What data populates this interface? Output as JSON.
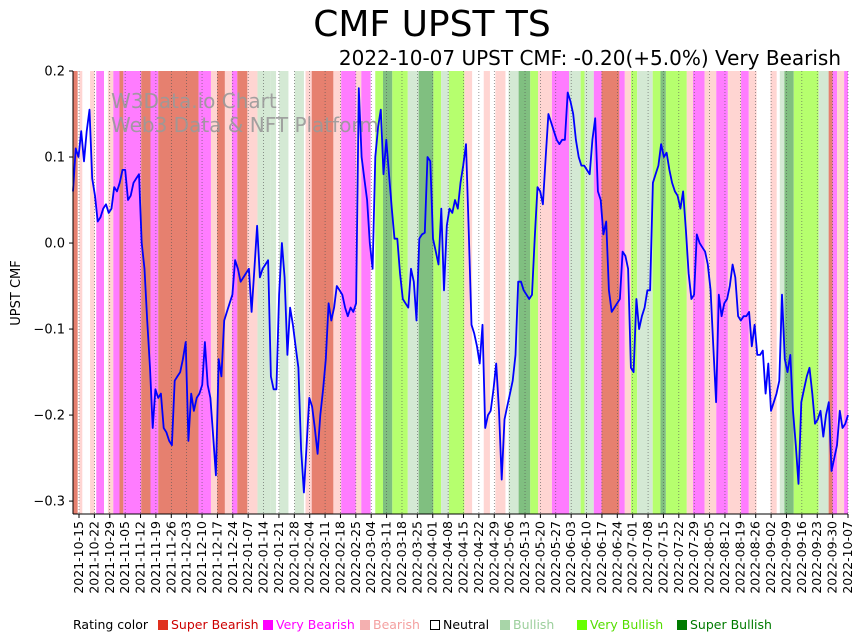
{
  "chart_data": {
    "type": "line",
    "title": "CMF UPST TS",
    "subtitle": "2022-10-07 UPST CMF: -0.20(+5.0%) Very Bearish",
    "ylabel": "UPST CMF",
    "xlabel": "",
    "ylim": [
      -0.315,
      0.2
    ],
    "yticks": [
      0.2,
      0.1,
      0.0,
      -0.1,
      -0.2,
      -0.3
    ],
    "ytick_labels": [
      "0.2",
      "0.1",
      "0.0",
      "−0.1",
      "−0.2",
      "−0.3"
    ],
    "x_start": "2021-10-15",
    "x_end": "2022-10-07",
    "xtick_labels": [
      "2021-10-15",
      "2021-10-22",
      "2021-10-29",
      "2021-11-05",
      "2021-11-12",
      "2021-11-19",
      "2021-11-26",
      "2021-12-03",
      "2021-12-10",
      "2021-12-17",
      "2021-12-24",
      "2022-01-07",
      "2022-01-14",
      "2022-01-21",
      "2022-01-28",
      "2022-02-04",
      "2022-02-11",
      "2022-02-18",
      "2022-02-25",
      "2022-03-04",
      "2022-03-11",
      "2022-03-18",
      "2022-03-25",
      "2022-04-01",
      "2022-04-08",
      "2022-04-15",
      "2022-04-22",
      "2022-04-29",
      "2022-05-06",
      "2022-05-13",
      "2022-05-20",
      "2022-05-27",
      "2022-06-03",
      "2022-06-10",
      "2022-06-17",
      "2022-06-24",
      "2022-07-01",
      "2022-07-08",
      "2022-07-15",
      "2022-07-22",
      "2022-07-29",
      "2022-08-05",
      "2022-08-12",
      "2022-08-19",
      "2022-08-26",
      "2022-09-02",
      "2022-09-09",
      "2022-09-16",
      "2022-09-23",
      "2022-09-30",
      "2022-10-07"
    ],
    "watermark": [
      "W3Data.io Chart",
      "Web3 Data & NFT Platform"
    ],
    "series": [
      {
        "name": "UPST CMF",
        "color": "#0000ff",
        "values": [
          0.06,
          0.11,
          0.1,
          0.13,
          0.095,
          0.13,
          0.155,
          0.075,
          0.055,
          0.025,
          0.03,
          0.04,
          0.045,
          0.035,
          0.04,
          0.065,
          0.06,
          0.07,
          0.085,
          0.085,
          0.05,
          0.055,
          0.07,
          0.075,
          0.08,
          0.0,
          -0.03,
          -0.09,
          -0.145,
          -0.215,
          -0.17,
          -0.18,
          -0.175,
          -0.215,
          -0.22,
          -0.23,
          -0.235,
          -0.16,
          -0.155,
          -0.15,
          -0.135,
          -0.115,
          -0.23,
          -0.175,
          -0.195,
          -0.18,
          -0.175,
          -0.165,
          -0.115,
          -0.165,
          -0.18,
          -0.225,
          -0.27,
          -0.135,
          -0.155,
          -0.09,
          -0.08,
          -0.07,
          -0.06,
          -0.02,
          -0.03,
          -0.045,
          -0.04,
          -0.035,
          -0.03,
          -0.08,
          -0.03,
          0.02,
          -0.04,
          -0.03,
          -0.025,
          -0.02,
          -0.155,
          -0.17,
          -0.17,
          -0.06,
          0.0,
          -0.04,
          -0.13,
          -0.075,
          -0.095,
          -0.12,
          -0.145,
          -0.24,
          -0.29,
          -0.235,
          -0.18,
          -0.19,
          -0.215,
          -0.245,
          -0.2,
          -0.17,
          -0.135,
          -0.07,
          -0.09,
          -0.075,
          -0.05,
          -0.055,
          -0.06,
          -0.075,
          -0.085,
          -0.075,
          -0.08,
          -0.07,
          0.18,
          0.1,
          0.075,
          0.05,
          0.0,
          -0.03,
          0.1,
          0.135,
          0.155,
          0.08,
          0.12,
          0.08,
          0.04,
          0.005,
          0.005,
          -0.035,
          -0.065,
          -0.07,
          -0.075,
          -0.03,
          -0.045,
          -0.09,
          0.005,
          0.01,
          0.012,
          0.1,
          0.095,
          0.005,
          -0.01,
          -0.025,
          0.04,
          -0.055,
          0.02,
          0.04,
          0.035,
          0.05,
          0.04,
          0.07,
          0.09,
          0.115,
          0.015,
          -0.095,
          -0.105,
          -0.12,
          -0.14,
          -0.095,
          -0.215,
          -0.2,
          -0.195,
          -0.17,
          -0.14,
          -0.195,
          -0.275,
          -0.205,
          -0.19,
          -0.175,
          -0.16,
          -0.13,
          -0.045,
          -0.045,
          -0.055,
          -0.06,
          -0.065,
          -0.06,
          0.005,
          0.065,
          0.06,
          0.045,
          0.1,
          0.15,
          0.14,
          0.13,
          0.12,
          0.115,
          0.12,
          0.12,
          0.175,
          0.165,
          0.15,
          0.12,
          0.1,
          0.09,
          0.09,
          0.085,
          0.08,
          0.12,
          0.145,
          0.06,
          0.05,
          0.01,
          0.025,
          -0.055,
          -0.08,
          -0.075,
          -0.07,
          -0.065,
          -0.01,
          -0.015,
          -0.03,
          -0.145,
          -0.15,
          -0.065,
          -0.1,
          -0.085,
          -0.075,
          -0.055,
          -0.055,
          0.07,
          0.08,
          0.09,
          0.115,
          0.1,
          0.105,
          0.085,
          0.07,
          0.06,
          0.055,
          0.04,
          0.06,
          0.015,
          -0.035,
          -0.065,
          -0.06,
          0.01,
          0.0,
          -0.005,
          -0.01,
          -0.025,
          -0.055,
          -0.12,
          -0.185,
          -0.06,
          -0.085,
          -0.07,
          -0.065,
          -0.05,
          -0.025,
          -0.04,
          -0.085,
          -0.09,
          -0.085,
          -0.085,
          -0.08,
          -0.12,
          -0.095,
          -0.13,
          -0.13,
          -0.125,
          -0.175,
          -0.14,
          -0.195,
          -0.185,
          -0.175,
          -0.16,
          -0.06,
          -0.135,
          -0.15,
          -0.13,
          -0.195,
          -0.235,
          -0.28,
          -0.185,
          -0.17,
          -0.155,
          -0.145,
          -0.175,
          -0.21,
          -0.205,
          -0.195,
          -0.225,
          -0.2,
          -0.185,
          -0.265,
          -0.25,
          -0.235,
          -0.195,
          -0.215,
          -0.21,
          -0.2
        ]
      }
    ],
    "rating_bands": [
      {
        "s": 0.0,
        "e": 0.006,
        "r": "Super Bearish"
      },
      {
        "s": 0.008,
        "e": 0.012,
        "r": "Bearish"
      },
      {
        "s": 0.022,
        "e": 0.028,
        "r": "Bearish"
      },
      {
        "s": 0.03,
        "e": 0.04,
        "r": "Very Bearish"
      },
      {
        "s": 0.045,
        "e": 0.052,
        "r": "Bearish"
      },
      {
        "s": 0.052,
        "e": 0.06,
        "r": "Very Bearish"
      },
      {
        "s": 0.06,
        "e": 0.065,
        "r": "Super Bearish"
      },
      {
        "s": 0.065,
        "e": 0.088,
        "r": "Very Bearish"
      },
      {
        "s": 0.088,
        "e": 0.1,
        "r": "Super Bearish"
      },
      {
        "s": 0.1,
        "e": 0.11,
        "r": "Very Bearish"
      },
      {
        "s": 0.11,
        "e": 0.162,
        "r": "Super Bearish"
      },
      {
        "s": 0.162,
        "e": 0.178,
        "r": "Very Bearish"
      },
      {
        "s": 0.178,
        "e": 0.186,
        "r": "Bearish"
      },
      {
        "s": 0.186,
        "e": 0.196,
        "r": "Super Bearish"
      },
      {
        "s": 0.196,
        "e": 0.205,
        "r": "Bearish"
      },
      {
        "s": 0.205,
        "e": 0.212,
        "r": "Very Bearish"
      },
      {
        "s": 0.212,
        "e": 0.225,
        "r": "Super Bearish"
      },
      {
        "s": 0.225,
        "e": 0.238,
        "r": "Bearish"
      },
      {
        "s": 0.238,
        "e": 0.255,
        "r": "Bullish"
      },
      {
        "s": 0.255,
        "e": 0.262,
        "r": "Bullish"
      },
      {
        "s": 0.266,
        "e": 0.278,
        "r": "Bullish"
      },
      {
        "s": 0.286,
        "e": 0.298,
        "r": "Bullish"
      },
      {
        "s": 0.3,
        "e": 0.308,
        "r": "Bearish"
      },
      {
        "s": 0.308,
        "e": 0.336,
        "r": "Super Bearish"
      },
      {
        "s": 0.336,
        "e": 0.346,
        "r": "Bearish"
      },
      {
        "s": 0.346,
        "e": 0.365,
        "r": "Very Bearish"
      },
      {
        "s": 0.365,
        "e": 0.372,
        "r": "Bearish"
      },
      {
        "s": 0.372,
        "e": 0.384,
        "r": "Very Bearish"
      },
      {
        "s": 0.39,
        "e": 0.4,
        "r": "Very Bullish"
      },
      {
        "s": 0.4,
        "e": 0.412,
        "r": "Super Bullish"
      },
      {
        "s": 0.412,
        "e": 0.432,
        "r": "Very Bullish"
      },
      {
        "s": 0.432,
        "e": 0.446,
        "r": "Bullish"
      },
      {
        "s": 0.446,
        "e": 0.465,
        "r": "Super Bullish"
      },
      {
        "s": 0.465,
        "e": 0.475,
        "r": "Very Bullish"
      },
      {
        "s": 0.475,
        "e": 0.485,
        "r": "Bullish"
      },
      {
        "s": 0.485,
        "e": 0.505,
        "r": "Very Bullish"
      },
      {
        "s": 0.505,
        "e": 0.515,
        "r": "Bearish"
      },
      {
        "s": 0.53,
        "e": 0.538,
        "r": "Bearish"
      },
      {
        "s": 0.545,
        "e": 0.558,
        "r": "Bearish"
      },
      {
        "s": 0.562,
        "e": 0.575,
        "r": "Bullish"
      },
      {
        "s": 0.575,
        "e": 0.59,
        "r": "Super Bullish"
      },
      {
        "s": 0.59,
        "e": 0.6,
        "r": "Very Bullish"
      },
      {
        "s": 0.6,
        "e": 0.618,
        "r": "Bearish"
      },
      {
        "s": 0.618,
        "e": 0.64,
        "r": "Very Bearish"
      },
      {
        "s": 0.64,
        "e": 0.655,
        "r": "Bullish"
      },
      {
        "s": 0.655,
        "e": 0.66,
        "r": "Very Bullish"
      },
      {
        "s": 0.66,
        "e": 0.672,
        "r": "Bullish"
      },
      {
        "s": 0.672,
        "e": 0.682,
        "r": "Very Bearish"
      },
      {
        "s": 0.682,
        "e": 0.705,
        "r": "Super Bearish"
      },
      {
        "s": 0.705,
        "e": 0.712,
        "r": "Very Bearish"
      },
      {
        "s": 0.712,
        "e": 0.72,
        "r": "Bearish"
      },
      {
        "s": 0.72,
        "e": 0.728,
        "r": "Very Bullish"
      },
      {
        "s": 0.728,
        "e": 0.748,
        "r": "Bullish"
      },
      {
        "s": 0.748,
        "e": 0.758,
        "r": "Very Bullish"
      },
      {
        "s": 0.758,
        "e": 0.765,
        "r": "Super Bullish"
      },
      {
        "s": 0.765,
        "e": 0.792,
        "r": "Very Bullish"
      },
      {
        "s": 0.792,
        "e": 0.8,
        "r": "Bearish"
      },
      {
        "s": 0.8,
        "e": 0.815,
        "r": "Very Bearish"
      },
      {
        "s": 0.815,
        "e": 0.83,
        "r": "Bearish"
      },
      {
        "s": 0.83,
        "e": 0.845,
        "r": "Very Bearish"
      },
      {
        "s": 0.845,
        "e": 0.862,
        "r": "Bearish"
      },
      {
        "s": 0.862,
        "e": 0.872,
        "r": "Very Bearish"
      },
      {
        "s": 0.872,
        "e": 0.882,
        "r": "Bearish"
      },
      {
        "s": 0.9,
        "e": 0.908,
        "r": "Bearish"
      },
      {
        "s": 0.912,
        "e": 0.918,
        "r": "Bullish"
      },
      {
        "s": 0.918,
        "e": 0.93,
        "r": "Super Bullish"
      },
      {
        "s": 0.93,
        "e": 0.962,
        "r": "Very Bullish"
      },
      {
        "s": 0.962,
        "e": 0.975,
        "r": "Bullish"
      },
      {
        "s": 0.975,
        "e": 0.98,
        "r": "Super Bearish"
      },
      {
        "s": 0.98,
        "e": 0.986,
        "r": "Very Bearish"
      },
      {
        "s": 0.986,
        "e": 0.995,
        "r": "Bearish"
      },
      {
        "s": 0.995,
        "e": 1.0,
        "r": "Very Bearish"
      }
    ],
    "legend": {
      "label": "Rating color",
      "items": [
        {
          "name": "Super Bearish",
          "color": "#e0301e",
          "text_color": "#cc0000"
        },
        {
          "name": "Very Bearish",
          "color": "#ff00ff",
          "text_color": "#ff00ff"
        },
        {
          "name": "Bearish",
          "color": "#f4b0b0",
          "text_color": "#f4a0a0"
        },
        {
          "name": "Neutral",
          "color": "#ffffff",
          "text_color": "#000000"
        },
        {
          "name": "Bullish",
          "color": "#a8d5a8",
          "text_color": "#9ccf9c"
        },
        {
          "name": "Very Bullish",
          "color": "#66ff00",
          "text_color": "#55dd00"
        },
        {
          "name": "Super Bullish",
          "color": "#007a00",
          "text_color": "#007a00"
        }
      ]
    }
  }
}
